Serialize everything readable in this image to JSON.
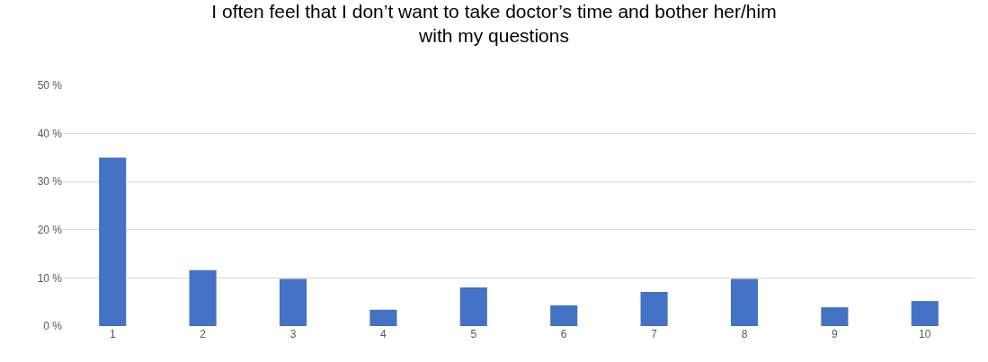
{
  "chart_data": {
    "type": "bar",
    "title": "I often feel that I don’t want to take doctor’s time and bother her/him\nwith my questions",
    "categories": [
      "1",
      "2",
      "3",
      "4",
      "5",
      "6",
      "7",
      "8",
      "9",
      "10"
    ],
    "values": [
      35,
      11.6,
      9.8,
      3.4,
      8.0,
      4.3,
      7.1,
      9.8,
      3.9,
      5.2
    ],
    "color": "#4472c4",
    "ylim": [
      0,
      50
    ],
    "yticks": [
      {
        "value": 0,
        "label": "0 %"
      },
      {
        "value": 10,
        "label": "10 %"
      },
      {
        "value": 20,
        "label": "20 %"
      },
      {
        "value": 30,
        "label": "30 %"
      },
      {
        "value": 40,
        "label": "40 %"
      },
      {
        "value": 50,
        "label": "50 %"
      }
    ],
    "grid": "y",
    "legend": false
  }
}
